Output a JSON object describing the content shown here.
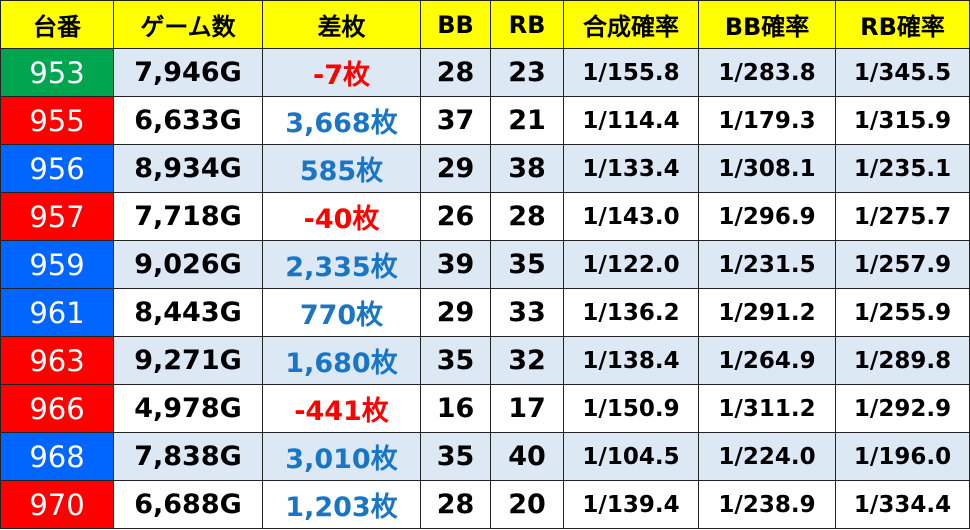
{
  "headers": [
    "台番",
    "ゲーム数",
    "差枚",
    "BB",
    "RB",
    "合成確率",
    "BB確率",
    "RB確率"
  ],
  "colors": {
    "header": "#ffff00",
    "green": "#00a550",
    "red": "#ff0000",
    "blue": "#0066ff",
    "alt_row": "#dde8f5",
    "positive_text": "#1a75c4",
    "negative_text": "#ff0000"
  },
  "rows": [
    {
      "machine": "953",
      "badge": "green",
      "games": "7,946G",
      "diff": "-7枚",
      "sign": "neg",
      "bb": "28",
      "rb": "23",
      "combined": "1/155.8",
      "bb_rate": "1/283.8",
      "rb_rate": "1/345.5"
    },
    {
      "machine": "955",
      "badge": "red",
      "games": "6,633G",
      "diff": "3,668枚",
      "sign": "pos",
      "bb": "37",
      "rb": "21",
      "combined": "1/114.4",
      "bb_rate": "1/179.3",
      "rb_rate": "1/315.9"
    },
    {
      "machine": "956",
      "badge": "blue",
      "games": "8,934G",
      "diff": "585枚",
      "sign": "pos",
      "bb": "29",
      "rb": "38",
      "combined": "1/133.4",
      "bb_rate": "1/308.1",
      "rb_rate": "1/235.1"
    },
    {
      "machine": "957",
      "badge": "red",
      "games": "7,718G",
      "diff": "-40枚",
      "sign": "neg",
      "bb": "26",
      "rb": "28",
      "combined": "1/143.0",
      "bb_rate": "1/296.9",
      "rb_rate": "1/275.7"
    },
    {
      "machine": "959",
      "badge": "blue",
      "games": "9,026G",
      "diff": "2,335枚",
      "sign": "pos",
      "bb": "39",
      "rb": "35",
      "combined": "1/122.0",
      "bb_rate": "1/231.5",
      "rb_rate": "1/257.9"
    },
    {
      "machine": "961",
      "badge": "blue",
      "games": "8,443G",
      "diff": "770枚",
      "sign": "pos",
      "bb": "29",
      "rb": "33",
      "combined": "1/136.2",
      "bb_rate": "1/291.2",
      "rb_rate": "1/255.9"
    },
    {
      "machine": "963",
      "badge": "red",
      "games": "9,271G",
      "diff": "1,680枚",
      "sign": "pos",
      "bb": "35",
      "rb": "32",
      "combined": "1/138.4",
      "bb_rate": "1/264.9",
      "rb_rate": "1/289.8"
    },
    {
      "machine": "966",
      "badge": "red",
      "games": "4,978G",
      "diff": "-441枚",
      "sign": "neg",
      "bb": "16",
      "rb": "17",
      "combined": "1/150.9",
      "bb_rate": "1/311.2",
      "rb_rate": "1/292.9"
    },
    {
      "machine": "968",
      "badge": "blue",
      "games": "7,838G",
      "diff": "3,010枚",
      "sign": "pos",
      "bb": "35",
      "rb": "40",
      "combined": "1/104.5",
      "bb_rate": "1/224.0",
      "rb_rate": "1/196.0"
    },
    {
      "machine": "970",
      "badge": "red",
      "games": "6,688G",
      "diff": "1,203枚",
      "sign": "pos",
      "bb": "28",
      "rb": "20",
      "combined": "1/139.4",
      "bb_rate": "1/238.9",
      "rb_rate": "1/334.4"
    }
  ]
}
